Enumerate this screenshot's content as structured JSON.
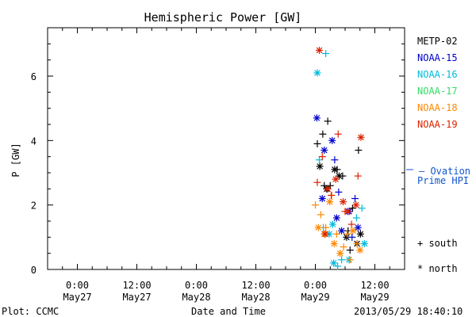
{
  "chart_data": {
    "type": "scatter",
    "title": "Hemispheric Power [GW]",
    "ylabel": "P [GW]",
    "xlabel": "Date and Time",
    "footer_left": "Plot: CCMC",
    "footer_right": "2013/05/29 18:40:10",
    "ylim": [
      0,
      7.5
    ],
    "yticks": [
      0,
      2,
      4,
      6
    ],
    "xlim_hours": [
      -6,
      66
    ],
    "xticks": [
      {
        "h": 0,
        "l1": "0:00",
        "l2": "May27"
      },
      {
        "h": 12,
        "l1": "12:00",
        "l2": "May27"
      },
      {
        "h": 24,
        "l1": "0:00",
        "l2": "May28"
      },
      {
        "h": 36,
        "l1": "12:00",
        "l2": "May28"
      },
      {
        "h": 48,
        "l1": "0:00",
        "l2": "May29"
      },
      {
        "h": 60,
        "l1": "12:00",
        "l2": "May29"
      }
    ],
    "grid": false,
    "legend_placement": "right",
    "series": [
      {
        "name": "METP-02",
        "color": "#000000",
        "points": [
          {
            "h": 48.4,
            "y": 3.9,
            "m": "plus"
          },
          {
            "h": 48.9,
            "y": 3.2,
            "m": "star"
          },
          {
            "h": 49.5,
            "y": 4.2,
            "m": "plus"
          },
          {
            "h": 49.8,
            "y": 2.6,
            "m": "plus"
          },
          {
            "h": 50.5,
            "y": 4.6,
            "m": "plus"
          },
          {
            "h": 50.3,
            "y": 2.5,
            "m": "star"
          },
          {
            "h": 51.0,
            "y": 2.6,
            "m": "plus"
          },
          {
            "h": 51.9,
            "y": 3.1,
            "m": "star"
          },
          {
            "h": 52.4,
            "y": 3.1,
            "m": "plus"
          },
          {
            "h": 52.8,
            "y": 2.9,
            "m": "star"
          },
          {
            "h": 53.5,
            "y": 2.9,
            "m": "plus"
          },
          {
            "h": 54.3,
            "y": 1.0,
            "m": "star"
          },
          {
            "h": 54.6,
            "y": 1.2,
            "m": "plus"
          },
          {
            "h": 55.0,
            "y": 0.6,
            "m": "plus"
          },
          {
            "h": 55.5,
            "y": 1.9,
            "m": "plus"
          },
          {
            "h": 56.4,
            "y": 0.8,
            "m": "star"
          },
          {
            "h": 56.7,
            "y": 3.7,
            "m": "plus"
          },
          {
            "h": 57.1,
            "y": 1.1,
            "m": "star"
          }
        ]
      },
      {
        "name": "NOAA-15",
        "color": "#0000cc",
        "points": [
          {
            "h": 48.3,
            "y": 4.7,
            "m": "star"
          },
          {
            "h": 49.4,
            "y": 2.2,
            "m": "star"
          },
          {
            "h": 49.8,
            "y": 3.7,
            "m": "star"
          },
          {
            "h": 51.4,
            "y": 4.0,
            "m": "star"
          },
          {
            "h": 51.9,
            "y": 3.4,
            "m": "plus"
          },
          {
            "h": 52.3,
            "y": 1.6,
            "m": "star"
          },
          {
            "h": 52.7,
            "y": 2.4,
            "m": "plus"
          },
          {
            "h": 53.3,
            "y": 1.2,
            "m": "star"
          },
          {
            "h": 54.8,
            "y": 1.8,
            "m": "star"
          },
          {
            "h": 55.4,
            "y": 1.0,
            "m": "plus"
          },
          {
            "h": 56.0,
            "y": 2.2,
            "m": "plus"
          },
          {
            "h": 56.6,
            "y": 1.3,
            "m": "star"
          }
        ]
      },
      {
        "name": "NOAA-16",
        "color": "#00bbdd",
        "points": [
          {
            "h": 48.4,
            "y": 6.1,
            "m": "star"
          },
          {
            "h": 50.1,
            "y": 6.7,
            "m": "plus"
          },
          {
            "h": 48.8,
            "y": 3.4,
            "m": "plus"
          },
          {
            "h": 49.6,
            "y": 1.3,
            "m": "plus"
          },
          {
            "h": 50.8,
            "y": 1.1,
            "m": "star"
          },
          {
            "h": 51.5,
            "y": 1.4,
            "m": "star"
          },
          {
            "h": 51.7,
            "y": 0.2,
            "m": "star"
          },
          {
            "h": 52.5,
            "y": 0.1,
            "m": "plus"
          },
          {
            "h": 53.3,
            "y": 0.3,
            "m": "plus"
          },
          {
            "h": 54.8,
            "y": 0.3,
            "m": "star"
          },
          {
            "h": 56.3,
            "y": 1.6,
            "m": "plus"
          },
          {
            "h": 57.4,
            "y": 1.9,
            "m": "plus"
          },
          {
            "h": 57.9,
            "y": 0.8,
            "m": "star"
          }
        ]
      },
      {
        "name": "NOAA-17",
        "color": "#33dd66",
        "points": []
      },
      {
        "name": "NOAA-18",
        "color": "#ff8800",
        "points": [
          {
            "h": 48.0,
            "y": 2.0,
            "m": "plus"
          },
          {
            "h": 48.6,
            "y": 1.3,
            "m": "star"
          },
          {
            "h": 49.1,
            "y": 1.7,
            "m": "plus"
          },
          {
            "h": 49.8,
            "y": 1.1,
            "m": "star"
          },
          {
            "h": 50.1,
            "y": 1.3,
            "m": "plus"
          },
          {
            "h": 50.9,
            "y": 2.1,
            "m": "star"
          },
          {
            "h": 51.3,
            "y": 2.3,
            "m": "plus"
          },
          {
            "h": 51.8,
            "y": 0.8,
            "m": "star"
          },
          {
            "h": 52.3,
            "y": 1.1,
            "m": "plus"
          },
          {
            "h": 53.0,
            "y": 0.5,
            "m": "star"
          },
          {
            "h": 53.7,
            "y": 0.7,
            "m": "plus"
          },
          {
            "h": 54.4,
            "y": 1.1,
            "m": "plus"
          },
          {
            "h": 55.0,
            "y": 0.3,
            "m": "plus"
          },
          {
            "h": 55.6,
            "y": 1.2,
            "m": "star"
          },
          {
            "h": 56.4,
            "y": 0.8,
            "m": "plus"
          },
          {
            "h": 57.0,
            "y": 0.6,
            "m": "star"
          }
        ]
      },
      {
        "name": "NOAA-19",
        "color": "#dd2200",
        "points": [
          {
            "h": 48.8,
            "y": 6.8,
            "m": "star"
          },
          {
            "h": 48.4,
            "y": 2.7,
            "m": "plus"
          },
          {
            "h": 49.4,
            "y": 3.5,
            "m": "plus"
          },
          {
            "h": 50.0,
            "y": 1.1,
            "m": "star"
          },
          {
            "h": 50.5,
            "y": 2.5,
            "m": "star"
          },
          {
            "h": 51.2,
            "y": 2.3,
            "m": "plus"
          },
          {
            "h": 52.1,
            "y": 2.8,
            "m": "star"
          },
          {
            "h": 52.6,
            "y": 4.2,
            "m": "plus"
          },
          {
            "h": 53.6,
            "y": 2.1,
            "m": "star"
          },
          {
            "h": 54.0,
            "y": 1.8,
            "m": "plus"
          },
          {
            "h": 54.5,
            "y": 1.8,
            "m": "star"
          },
          {
            "h": 55.3,
            "y": 1.4,
            "m": "plus"
          },
          {
            "h": 56.2,
            "y": 2.0,
            "m": "star"
          },
          {
            "h": 56.6,
            "y": 2.9,
            "m": "plus"
          },
          {
            "h": 57.2,
            "y": 4.1,
            "m": "star"
          }
        ]
      }
    ],
    "ovation": {
      "label_line1": "– Ovation",
      "label_line2": "Prime HPI",
      "value": 3.1,
      "color": "#1155cc"
    },
    "marker_key": [
      {
        "label": "+ south"
      },
      {
        "label": "* north"
      }
    ]
  }
}
